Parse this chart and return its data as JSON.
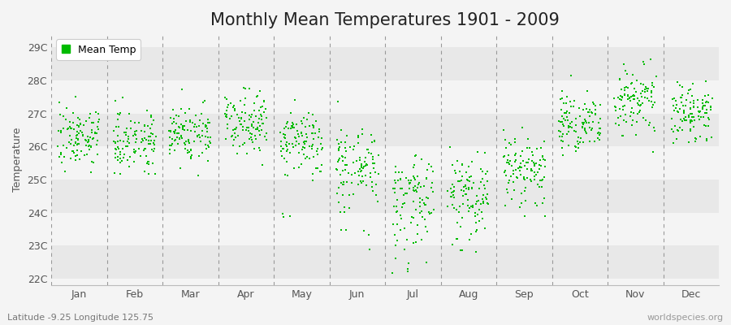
{
  "title": "Monthly Mean Temperatures 1901 - 2009",
  "ylabel": "Temperature",
  "subtitle_left": "Latitude -9.25 Longitude 125.75",
  "subtitle_right": "worldspecies.org",
  "ytick_labels": [
    "22C",
    "23C",
    "24C",
    "25C",
    "26C",
    "27C",
    "28C",
    "29C"
  ],
  "ytick_values": [
    22,
    23,
    24,
    25,
    26,
    27,
    28,
    29
  ],
  "ylim": [
    21.8,
    29.4
  ],
  "months": [
    "Jan",
    "Feb",
    "Mar",
    "Apr",
    "May",
    "Jun",
    "Jul",
    "Aug",
    "Sep",
    "Oct",
    "Nov",
    "Dec"
  ],
  "dot_color": "#00bb00",
  "dot_size": 3,
  "bg_color": "#f4f4f4",
  "plot_bg_light": "#f4f4f4",
  "plot_bg_dark": "#e8e8e8",
  "legend_label": "Mean Temp",
  "title_fontsize": 15,
  "label_fontsize": 9,
  "tick_fontsize": 9,
  "monthly_means": [
    26.3,
    26.2,
    26.4,
    26.8,
    26.1,
    25.4,
    24.5,
    24.6,
    25.4,
    26.8,
    27.4,
    27.0
  ],
  "monthly_std": [
    0.45,
    0.45,
    0.45,
    0.45,
    0.5,
    0.6,
    0.65,
    0.6,
    0.55,
    0.5,
    0.5,
    0.45
  ],
  "n_years": 109
}
